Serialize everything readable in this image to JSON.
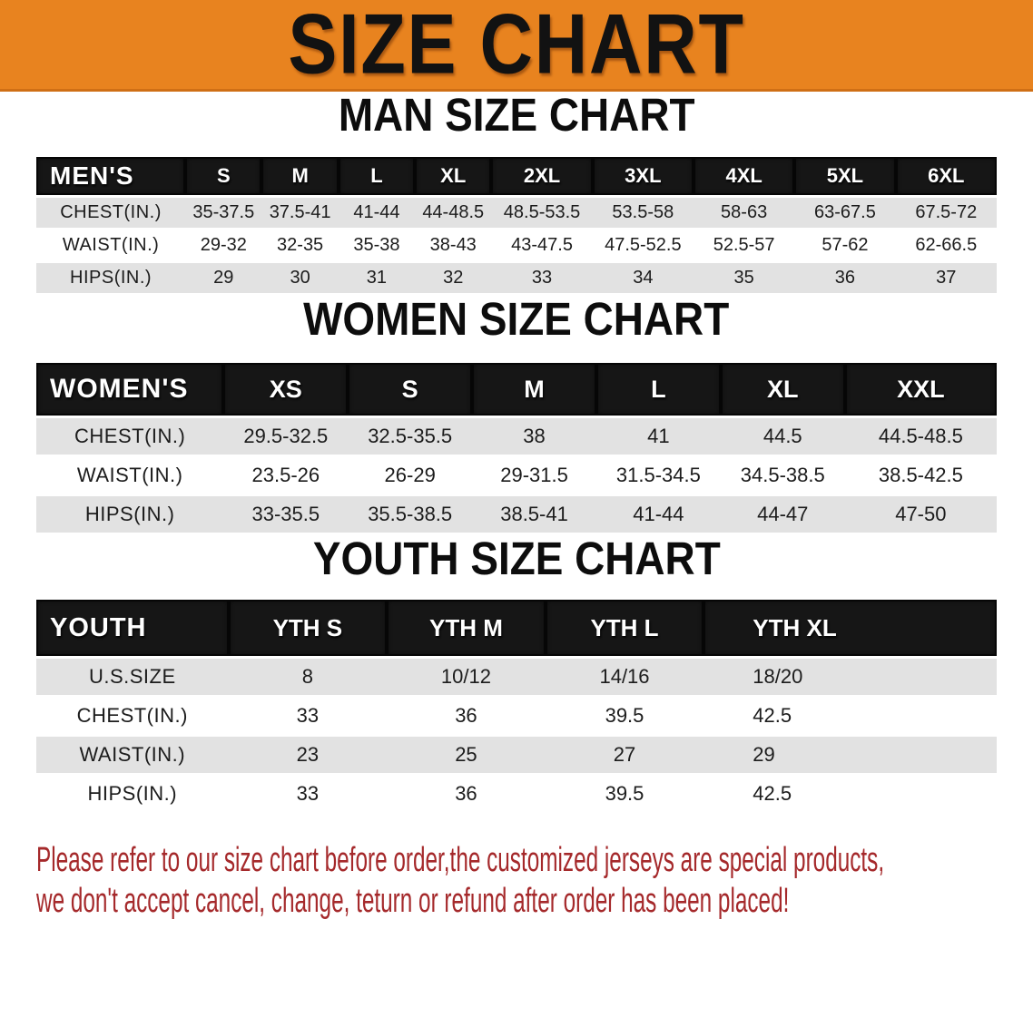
{
  "colors": {
    "banner_bg": "#E8831F",
    "table_header_bg": "#161616",
    "row_shade": "#E2E2E2",
    "disclaimer_red": "#A5292B"
  },
  "banner": {
    "title": "SIZE CHART"
  },
  "sections": [
    {
      "heading": "MAN SIZE CHART",
      "table": {
        "name": "mens",
        "header_label": "MEN'S",
        "columns": [
          "S",
          "M",
          "L",
          "XL",
          "2XL",
          "3XL",
          "4XL",
          "5XL",
          "6XL"
        ],
        "rows": [
          {
            "label": "CHEST(IN.)",
            "values": [
              "35-37.5",
              "37.5-41",
              "41-44",
              "44-48.5",
              "48.5-53.5",
              "53.5-58",
              "58-63",
              "63-67.5",
              "67.5-72"
            ]
          },
          {
            "label": "WAIST(IN.)",
            "values": [
              "29-32",
              "32-35",
              "35-38",
              "38-43",
              "43-47.5",
              "47.5-52.5",
              "52.5-57",
              "57-62",
              "62-66.5"
            ]
          },
          {
            "label": "HIPS(IN.)",
            "values": [
              "29",
              "30",
              "31",
              "32",
              "33",
              "34",
              "35",
              "36",
              "37"
            ]
          }
        ]
      }
    },
    {
      "heading": "WOMEN SIZE CHART",
      "table": {
        "name": "womens",
        "header_label": "WOMEN'S",
        "columns": [
          "XS",
          "S",
          "M",
          "L",
          "XL",
          "XXL"
        ],
        "rows": [
          {
            "label": "CHEST(IN.)",
            "values": [
              "29.5-32.5",
              "32.5-35.5",
              "38",
              "41",
              "44.5",
              "44.5-48.5"
            ]
          },
          {
            "label": "WAIST(IN.)",
            "values": [
              "23.5-26",
              "26-29",
              "29-31.5",
              "31.5-34.5",
              "34.5-38.5",
              "38.5-42.5"
            ]
          },
          {
            "label": "HIPS(IN.)",
            "values": [
              "33-35.5",
              "35.5-38.5",
              "38.5-41",
              "41-44",
              "44-47",
              "47-50"
            ]
          }
        ]
      }
    },
    {
      "heading": "YOUTH SIZE CHART",
      "table": {
        "name": "youth",
        "header_label": "YOUTH",
        "columns": [
          "YTH S",
          "YTH M",
          "YTH L",
          "YTH XL"
        ],
        "rows": [
          {
            "label": "U.S.SIZE",
            "values": [
              "8",
              "10/12",
              "14/16",
              "18/20"
            ]
          },
          {
            "label": "CHEST(IN.)",
            "values": [
              "33",
              "36",
              "39.5",
              "42.5"
            ]
          },
          {
            "label": "WAIST(IN.)",
            "values": [
              "23",
              "25",
              "27",
              "29"
            ]
          },
          {
            "label": "HIPS(IN.)",
            "values": [
              "33",
              "36",
              "39.5",
              "42.5"
            ]
          }
        ]
      }
    }
  ],
  "disclaimer": {
    "line1": "Please refer to our size chart before order,the customized jerseys are special products,",
    "line2": "we don't accept cancel, change, teturn or refund after order has been placed!"
  }
}
